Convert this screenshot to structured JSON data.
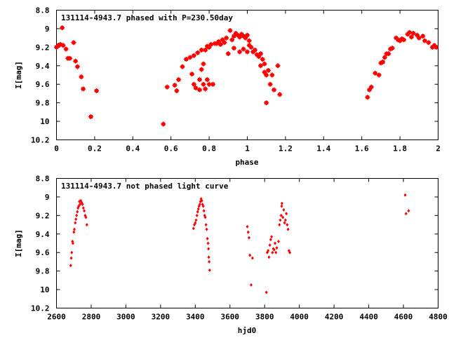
{
  "colors": {
    "series": "#ff0000",
    "axes": "#000000",
    "background": "#ffffff"
  },
  "chart_data": [
    {
      "type": "scatter",
      "title": "131114-4943.7 phased with P=230.50day",
      "xlabel": "phase",
      "ylabel": "I[mag]",
      "xlim": [
        0,
        2
      ],
      "ylim": [
        10.2,
        8.8
      ],
      "y_inverted": true,
      "xticks": [
        0,
        0.2,
        0.4,
        0.6,
        0.8,
        1,
        1.2,
        1.4,
        1.6,
        1.8,
        2
      ],
      "xtick_labels": [
        "0",
        "0.2",
        "0.4",
        "0.6",
        "0.8",
        "1",
        "1.2",
        "1.4",
        "1.6",
        "1.8",
        "2"
      ],
      "yticks": [
        8.8,
        9,
        9.2,
        9.4,
        9.6,
        9.8,
        10,
        10.2
      ],
      "ytick_labels": [
        "8.8",
        "9",
        "9.2",
        "9.4",
        "9.6",
        "9.8",
        "10",
        "10.2"
      ],
      "marker": "star",
      "grid": false,
      "series": [
        {
          "points": [
            [
              0.0,
              9.2
            ],
            [
              0.01,
              9.18
            ],
            [
              0.02,
              9.17
            ],
            [
              0.03,
              8.99
            ],
            [
              0.035,
              9.18
            ],
            [
              0.05,
              9.22
            ],
            [
              0.06,
              9.32
            ],
            [
              0.07,
              9.32
            ],
            [
              0.09,
              9.15
            ],
            [
              0.1,
              9.35
            ],
            [
              0.11,
              9.41
            ],
            [
              0.13,
              9.52
            ],
            [
              0.14,
              9.65
            ],
            [
              0.18,
              9.95
            ],
            [
              0.21,
              9.67
            ],
            [
              0.56,
              10.03
            ],
            [
              0.58,
              9.63
            ],
            [
              0.62,
              9.61
            ],
            [
              0.63,
              9.67
            ],
            [
              0.64,
              9.55
            ],
            [
              0.66,
              9.41
            ],
            [
              0.68,
              9.33
            ],
            [
              0.7,
              9.31
            ],
            [
              0.71,
              9.49
            ],
            [
              0.72,
              9.29
            ],
            [
              0.72,
              9.6
            ],
            [
              0.73,
              9.64
            ],
            [
              0.74,
              9.26
            ],
            [
              0.75,
              9.55
            ],
            [
              0.75,
              9.66
            ],
            [
              0.76,
              9.44
            ],
            [
              0.76,
              9.23
            ],
            [
              0.77,
              9.6
            ],
            [
              0.77,
              9.38
            ],
            [
              0.78,
              9.23
            ],
            [
              0.78,
              9.65
            ],
            [
              0.79,
              9.19
            ],
            [
              0.79,
              9.55
            ],
            [
              0.8,
              9.6
            ],
            [
              0.8,
              9.2
            ],
            [
              0.81,
              9.17
            ],
            [
              0.82,
              9.6
            ],
            [
              0.83,
              9.16
            ],
            [
              0.84,
              9.16
            ],
            [
              0.85,
              9.14
            ],
            [
              0.86,
              9.17
            ],
            [
              0.87,
              9.12
            ],
            [
              0.88,
              9.15
            ],
            [
              0.89,
              9.1
            ],
            [
              0.9,
              9.27
            ],
            [
              0.91,
              9.02
            ],
            [
              0.92,
              9.12
            ],
            [
              0.93,
              9.21
            ],
            [
              0.93,
              9.08
            ],
            [
              0.94,
              9.05
            ],
            [
              0.95,
              9.07
            ],
            [
              0.96,
              9.25
            ],
            [
              0.96,
              9.09
            ],
            [
              0.97,
              9.06
            ],
            [
              0.98,
              9.22
            ],
            [
              0.98,
              9.08
            ],
            [
              0.99,
              9.1
            ],
            [
              1.0,
              9.25
            ],
            [
              1.0,
              9.07
            ],
            [
              1.01,
              9.13
            ],
            [
              1.01,
              9.18
            ],
            [
              1.02,
              9.2
            ],
            [
              1.03,
              9.25
            ],
            [
              1.04,
              9.23
            ],
            [
              1.05,
              9.28
            ],
            [
              1.06,
              9.3
            ],
            [
              1.07,
              9.27
            ],
            [
              1.07,
              9.4
            ],
            [
              1.08,
              9.33
            ],
            [
              1.09,
              9.47
            ],
            [
              1.09,
              9.38
            ],
            [
              1.1,
              9.5
            ],
            [
              1.1,
              9.8
            ],
            [
              1.11,
              9.45
            ],
            [
              1.12,
              9.6
            ],
            [
              1.13,
              9.5
            ],
            [
              1.14,
              9.66
            ],
            [
              1.16,
              9.4
            ],
            [
              1.17,
              9.71
            ],
            [
              1.63,
              9.74
            ],
            [
              1.64,
              9.66
            ],
            [
              1.65,
              9.63
            ],
            [
              1.67,
              9.48
            ],
            [
              1.69,
              9.5
            ],
            [
              1.7,
              9.37
            ],
            [
              1.71,
              9.36
            ],
            [
              1.72,
              9.31
            ],
            [
              1.73,
              9.27
            ],
            [
              1.74,
              9.27
            ],
            [
              1.75,
              9.22
            ],
            [
              1.76,
              9.21
            ],
            [
              1.78,
              9.1
            ],
            [
              1.79,
              9.12
            ],
            [
              1.8,
              9.13
            ],
            [
              1.81,
              9.11
            ],
            [
              1.82,
              9.12
            ],
            [
              1.84,
              9.06
            ],
            [
              1.85,
              9.04
            ],
            [
              1.86,
              9.09
            ],
            [
              1.87,
              9.05
            ],
            [
              1.89,
              9.07
            ],
            [
              1.9,
              9.1
            ],
            [
              1.92,
              9.08
            ],
            [
              1.93,
              9.13
            ],
            [
              1.95,
              9.15
            ],
            [
              1.97,
              9.2
            ],
            [
              1.98,
              9.18
            ],
            [
              1.99,
              9.2
            ]
          ]
        }
      ]
    },
    {
      "type": "scatter",
      "title": "131114-4943.7 not phased light curve",
      "xlabel": "hjd0",
      "ylabel": "I[mag]",
      "xlim": [
        2600,
        4800
      ],
      "ylim": [
        10.2,
        8.8
      ],
      "y_inverted": true,
      "xticks": [
        2600,
        2800,
        3000,
        3200,
        3400,
        3600,
        3800,
        4000,
        4200,
        4400,
        4600,
        4800
      ],
      "xtick_labels": [
        "2600",
        "2800",
        "3000",
        "3200",
        "3400",
        "3600",
        "3800",
        "4000",
        "4200",
        "4400",
        "4600",
        "4800"
      ],
      "yticks": [
        8.8,
        9,
        9.2,
        9.4,
        9.6,
        9.8,
        10,
        10.2
      ],
      "ytick_labels": [
        "8.8",
        "9",
        "9.2",
        "9.4",
        "9.6",
        "9.8",
        "10",
        "10.2"
      ],
      "marker": "diamond",
      "grid": false,
      "series": [
        {
          "points": [
            [
              2682,
              9.74
            ],
            [
              2685,
              9.66
            ],
            [
              2688,
              9.6
            ],
            [
              2692,
              9.48
            ],
            [
              2695,
              9.5
            ],
            [
              2700,
              9.38
            ],
            [
              2703,
              9.35
            ],
            [
              2708,
              9.28
            ],
            [
              2712,
              9.24
            ],
            [
              2716,
              9.2
            ],
            [
              2720,
              9.16
            ],
            [
              2724,
              9.12
            ],
            [
              2728,
              9.1
            ],
            [
              2732,
              9.05
            ],
            [
              2736,
              9.08
            ],
            [
              2740,
              9.04
            ],
            [
              2745,
              9.06
            ],
            [
              2750,
              9.08
            ],
            [
              2755,
              9.12
            ],
            [
              2760,
              9.15
            ],
            [
              2765,
              9.2
            ],
            [
              2770,
              9.22
            ],
            [
              2775,
              9.3
            ],
            [
              3390,
              9.34
            ],
            [
              3395,
              9.3
            ],
            [
              3400,
              9.28
            ],
            [
              3405,
              9.25
            ],
            [
              3410,
              9.2
            ],
            [
              3414,
              9.16
            ],
            [
              3418,
              9.13
            ],
            [
              3422,
              9.1
            ],
            [
              3426,
              9.08
            ],
            [
              3430,
              9.05
            ],
            [
              3434,
              9.02
            ],
            [
              3438,
              9.04
            ],
            [
              3442,
              9.08
            ],
            [
              3446,
              9.1
            ],
            [
              3450,
              9.15
            ],
            [
              3454,
              9.2
            ],
            [
              3458,
              9.22
            ],
            [
              3462,
              9.3
            ],
            [
              3466,
              9.35
            ],
            [
              3470,
              9.45
            ],
            [
              3474,
              9.5
            ],
            [
              3476,
              9.56
            ],
            [
              3478,
              9.65
            ],
            [
              3480,
              9.7
            ],
            [
              3483,
              9.79
            ],
            [
              3700,
              9.32
            ],
            [
              3705,
              9.38
            ],
            [
              3710,
              9.44
            ],
            [
              3715,
              9.63
            ],
            [
              3722,
              9.95
            ],
            [
              3730,
              9.66
            ],
            [
              3810,
              10.03
            ],
            [
              3815,
              9.6
            ],
            [
              3820,
              9.58
            ],
            [
              3825,
              9.65
            ],
            [
              3830,
              9.52
            ],
            [
              3835,
              9.46
            ],
            [
              3840,
              9.43
            ],
            [
              3845,
              9.6
            ],
            [
              3850,
              9.56
            ],
            [
              3855,
              9.57
            ],
            [
              3860,
              9.5
            ],
            [
              3865,
              9.6
            ],
            [
              3870,
              9.55
            ],
            [
              3880,
              9.48
            ],
            [
              3885,
              9.3
            ],
            [
              3890,
              9.25
            ],
            [
              3895,
              9.2
            ],
            [
              3898,
              9.1
            ],
            [
              3900,
              9.07
            ],
            [
              3905,
              9.22
            ],
            [
              3910,
              9.14
            ],
            [
              3915,
              9.28
            ],
            [
              3920,
              9.25
            ],
            [
              3925,
              9.18
            ],
            [
              3930,
              9.3
            ],
            [
              3935,
              9.35
            ],
            [
              3940,
              9.58
            ],
            [
              3945,
              9.6
            ],
            [
              4610,
              8.98
            ],
            [
              4615,
              9.18
            ],
            [
              4630,
              9.15
            ]
          ]
        }
      ]
    }
  ]
}
